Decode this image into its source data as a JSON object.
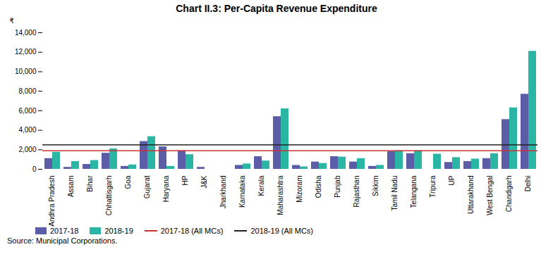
{
  "chart_data": {
    "type": "bar",
    "title": "Chart II.3: Per-Capita Revenue Expenditure",
    "ylabel": "₹",
    "categories": [
      "Andhra Pradesh",
      "Assam",
      "Bihar",
      "Chhattisgarh",
      "Goa",
      "Gujarat",
      "Haryana",
      "HP",
      "J&K",
      "Jharkhand",
      "Karnataka",
      "Kerala",
      "Maharashtra",
      "Mizoram",
      "Odisha",
      "Punjab",
      "Rajasthan",
      "Sikkim",
      "Tamil Nadu",
      "Telangana",
      "Tripura",
      "UP",
      "Uttarakhand",
      "West Bengal",
      "Chandigarh",
      "Delhi"
    ],
    "series": [
      {
        "name": "2017-18",
        "color": "#5b5ea6",
        "values": [
          1100,
          200,
          500,
          1650,
          300,
          2850,
          2300,
          1900,
          200,
          0,
          400,
          1300,
          5400,
          400,
          750,
          1300,
          750,
          300,
          1800,
          1600,
          0,
          700,
          800,
          1100,
          5100,
          7700
        ]
      },
      {
        "name": "2018-19",
        "color": "#2ab5a5",
        "values": [
          1750,
          800,
          900,
          2100,
          450,
          3350,
          300,
          1500,
          0,
          0,
          550,
          850,
          6200,
          250,
          600,
          1250,
          1100,
          400,
          1900,
          1900,
          1550,
          1200,
          1050,
          1600,
          6300,
          12100
        ]
      }
    ],
    "reference_lines": [
      {
        "name": "2017-18 (All MCs)",
        "value": 1900,
        "color": "#cc3333"
      },
      {
        "name": "2018-19 (All MCs)",
        "value": 2500,
        "color": "#222222"
      }
    ],
    "ylim": [
      0,
      14000
    ],
    "yticks": [
      0,
      {
        "value": 2000,
        "label": "2,000"
      },
      {
        "value": 4000,
        "label": "4,000"
      },
      {
        "value": 6000,
        "label": "6,000"
      },
      {
        "value": 8000,
        "label": "8,000"
      },
      {
        "value": 10000,
        "label": "10,000"
      },
      {
        "value": 12000,
        "label": "12,000"
      },
      {
        "value": 14000,
        "label": "14,000"
      }
    ],
    "grid": false,
    "legend": "lower left",
    "source": "Source: Municipal Corporations."
  }
}
